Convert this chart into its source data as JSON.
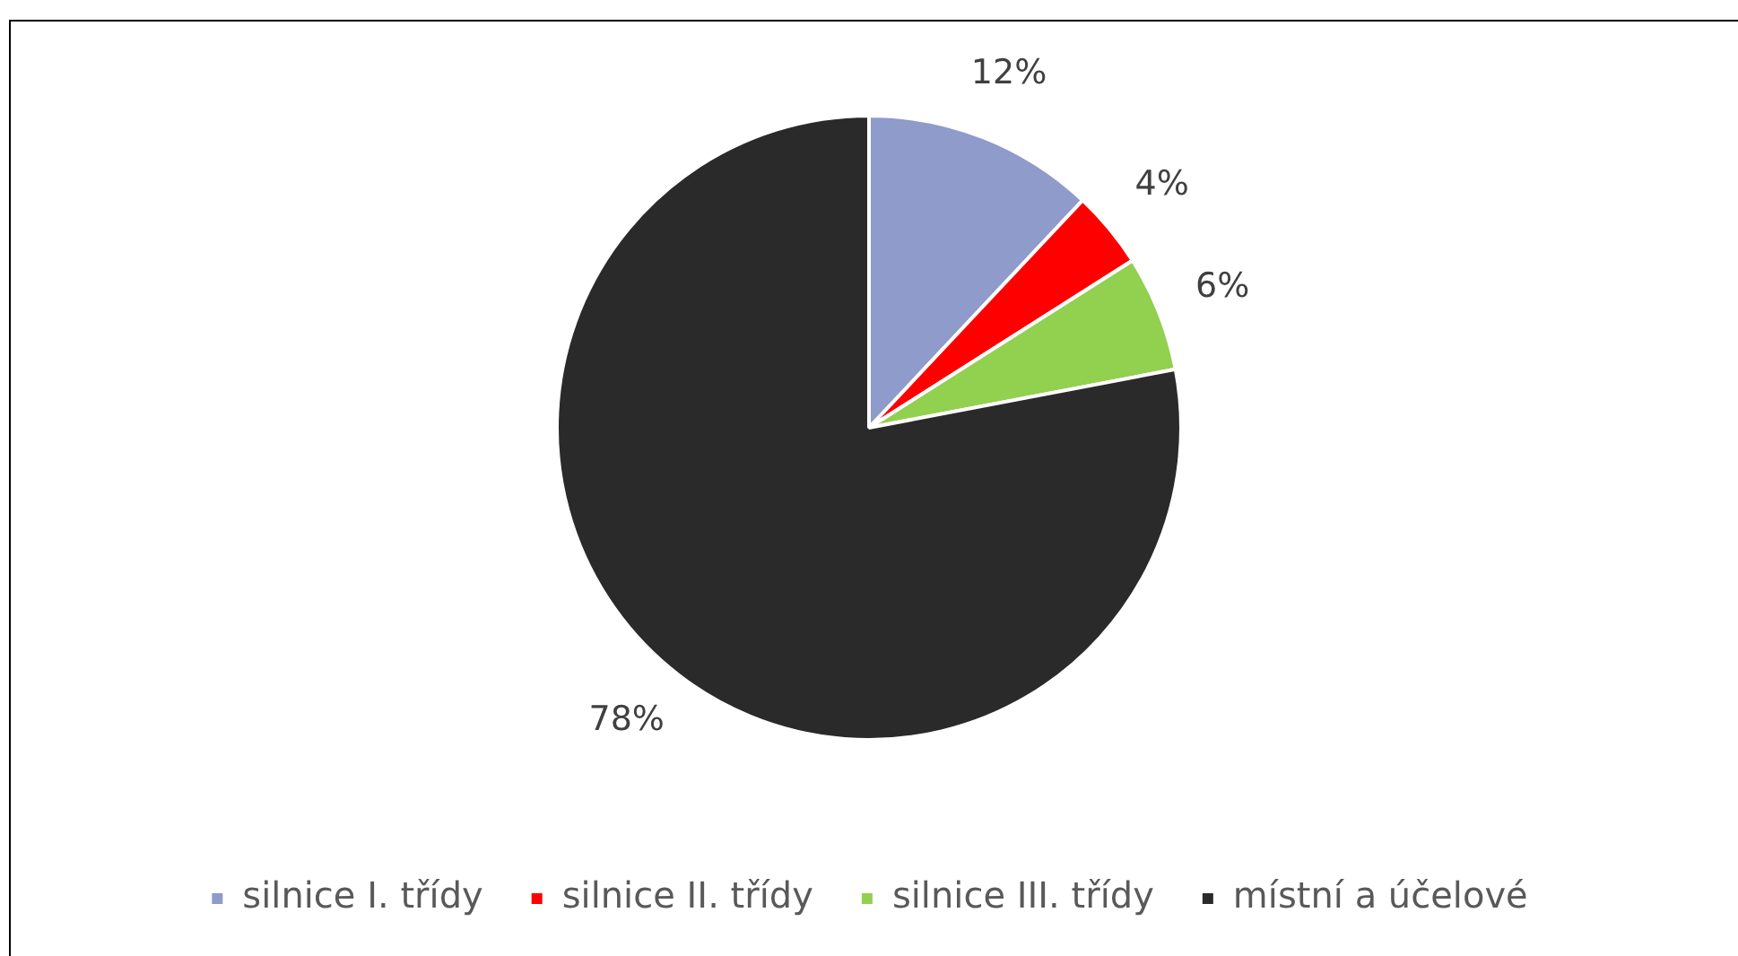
{
  "chart_data": {
    "type": "pie",
    "categories": [
      "silnice I. třídy",
      "silnice II. třídy",
      "silnice III. třídy",
      "místní a účelové"
    ],
    "values": [
      12,
      4,
      6,
      78
    ],
    "colors": [
      "#8e9bcb",
      "#ff0000",
      "#92d050",
      "#2b2a2b"
    ],
    "value_labels": [
      "12%",
      "4%",
      "6%",
      "78%"
    ],
    "legend": "bottom"
  }
}
